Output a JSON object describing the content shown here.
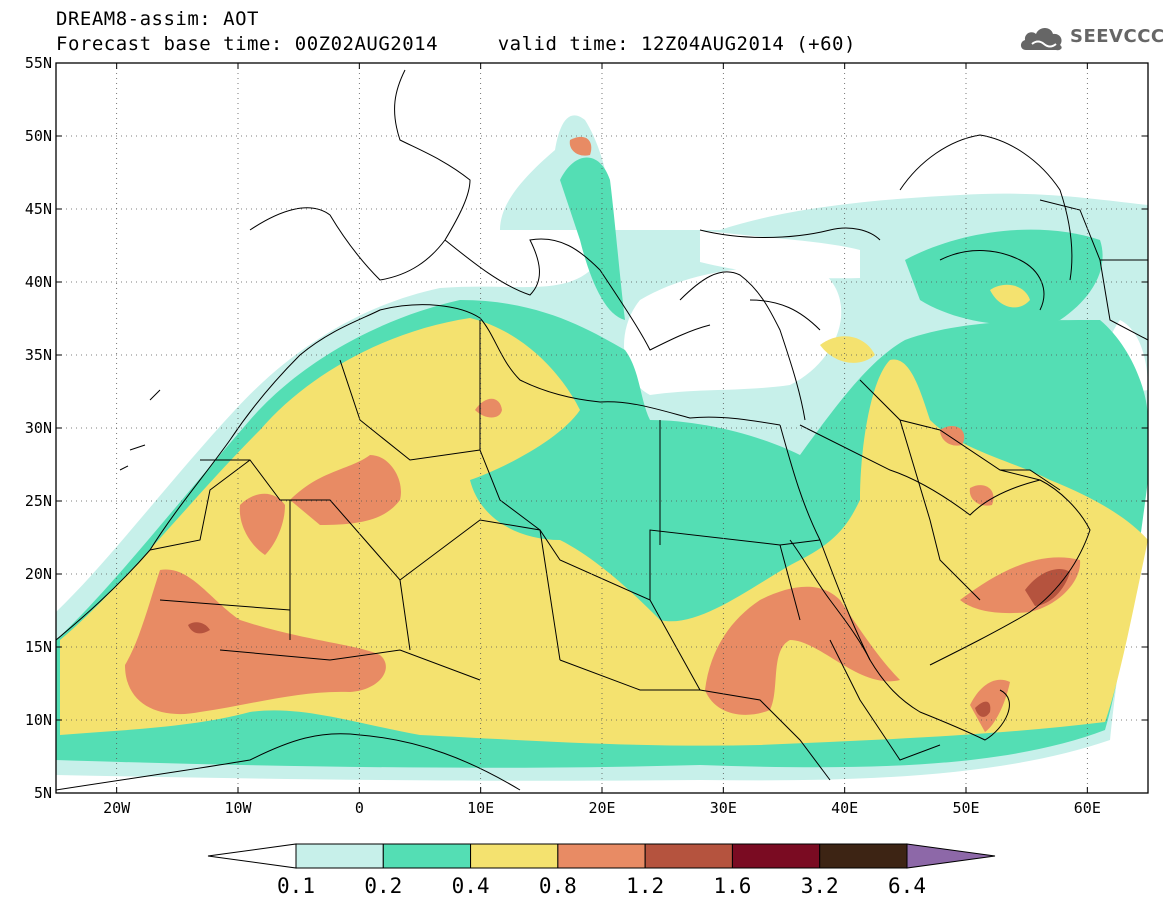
{
  "header": {
    "line1": "DREAM8-assim: AOT",
    "line2": "Forecast base time: 00Z02AUG2014     valid time: 12Z04AUG2014 (+60)"
  },
  "logo": {
    "text": "SEEVCCC",
    "icon": "cloud-icon"
  },
  "map": {
    "lon_range": [
      -25,
      65
    ],
    "lat_range": [
      5,
      55
    ],
    "lat_ticks": [
      "55N",
      "50N",
      "45N",
      "40N",
      "35N",
      "30N",
      "25N",
      "20N",
      "15N",
      "10N",
      "5N"
    ],
    "lon_ticks": [
      "20W",
      "10W",
      "0",
      "10E",
      "20E",
      "30E",
      "40E",
      "50E",
      "60E"
    ],
    "grid": "dotted"
  },
  "legend": {
    "colors": [
      "#ffffff",
      "#c7f0ea",
      "#54deb4",
      "#f4e26f",
      "#e88b64",
      "#b5533e",
      "#7a0b22",
      "#3d2414",
      "#8d68a8"
    ],
    "labels": [
      "0.1",
      "0.2",
      "0.4",
      "0.8",
      "1.2",
      "1.6",
      "3.2",
      "6.4"
    ]
  }
}
